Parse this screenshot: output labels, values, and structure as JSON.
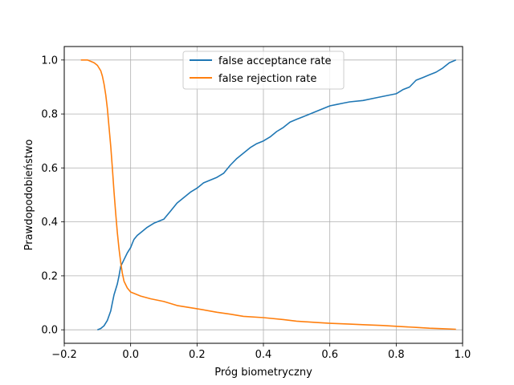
{
  "chart_data": {
    "type": "line",
    "title": "",
    "xlabel": "Próg biometryczny",
    "ylabel": "Prawdopodobieństwo",
    "xlim": [
      -0.2,
      1.0
    ],
    "ylim": [
      -0.05,
      1.05
    ],
    "xticks": [
      -0.2,
      0.0,
      0.2,
      0.4,
      0.6,
      0.8,
      1.0
    ],
    "xtick_labels": [
      "−0.2",
      "0.0",
      "0.2",
      "0.4",
      "0.6",
      "0.8",
      "1.0"
    ],
    "yticks": [
      0.0,
      0.2,
      0.4,
      0.6,
      0.8,
      1.0
    ],
    "ytick_labels": [
      "0.0",
      "0.2",
      "0.4",
      "0.6",
      "0.8",
      "1.0"
    ],
    "grid": true,
    "legend_position": "top-center",
    "series": [
      {
        "name": "false acceptance rate",
        "color": "#1f77b4",
        "x": [
          -0.1,
          -0.09,
          -0.08,
          -0.07,
          -0.06,
          -0.055,
          -0.05,
          -0.04,
          -0.035,
          -0.03,
          -0.02,
          -0.01,
          0.0,
          0.005,
          0.01,
          0.02,
          0.03,
          0.05,
          0.07,
          0.1,
          0.12,
          0.14,
          0.16,
          0.18,
          0.2,
          0.22,
          0.24,
          0.26,
          0.28,
          0.3,
          0.32,
          0.34,
          0.36,
          0.38,
          0.4,
          0.42,
          0.44,
          0.46,
          0.48,
          0.5,
          0.52,
          0.54,
          0.56,
          0.58,
          0.6,
          0.62,
          0.64,
          0.66,
          0.7,
          0.74,
          0.78,
          0.8,
          0.82,
          0.84,
          0.86,
          0.88,
          0.9,
          0.92,
          0.94,
          0.96,
          0.98
        ],
        "y": [
          0.0,
          0.005,
          0.015,
          0.035,
          0.07,
          0.1,
          0.13,
          0.17,
          0.2,
          0.235,
          0.26,
          0.285,
          0.305,
          0.32,
          0.335,
          0.35,
          0.36,
          0.38,
          0.395,
          0.41,
          0.44,
          0.47,
          0.49,
          0.51,
          0.525,
          0.545,
          0.555,
          0.565,
          0.58,
          0.61,
          0.635,
          0.655,
          0.675,
          0.69,
          0.7,
          0.715,
          0.735,
          0.75,
          0.77,
          0.78,
          0.79,
          0.8,
          0.81,
          0.82,
          0.83,
          0.835,
          0.84,
          0.845,
          0.85,
          0.86,
          0.87,
          0.875,
          0.89,
          0.9,
          0.925,
          0.935,
          0.945,
          0.955,
          0.97,
          0.99,
          1.0
        ]
      },
      {
        "name": "false rejection rate",
        "color": "#ff7f0e",
        "x": [
          -0.15,
          -0.13,
          -0.11,
          -0.1,
          -0.09,
          -0.085,
          -0.08,
          -0.075,
          -0.07,
          -0.065,
          -0.06,
          -0.055,
          -0.05,
          -0.045,
          -0.04,
          -0.035,
          -0.03,
          -0.025,
          -0.02,
          -0.01,
          0.0,
          0.01,
          0.03,
          0.06,
          0.1,
          0.14,
          0.2,
          0.26,
          0.3,
          0.34,
          0.4,
          0.46,
          0.5,
          0.56,
          0.6,
          0.66,
          0.7,
          0.76,
          0.8,
          0.86,
          0.9,
          0.94,
          0.98
        ],
        "y": [
          1.0,
          1.0,
          0.99,
          0.98,
          0.96,
          0.94,
          0.91,
          0.87,
          0.82,
          0.75,
          0.68,
          0.6,
          0.51,
          0.43,
          0.36,
          0.3,
          0.25,
          0.21,
          0.18,
          0.155,
          0.14,
          0.135,
          0.125,
          0.115,
          0.105,
          0.09,
          0.078,
          0.065,
          0.058,
          0.05,
          0.045,
          0.038,
          0.032,
          0.027,
          0.024,
          0.021,
          0.019,
          0.016,
          0.013,
          0.009,
          0.006,
          0.004,
          0.002
        ]
      }
    ]
  }
}
